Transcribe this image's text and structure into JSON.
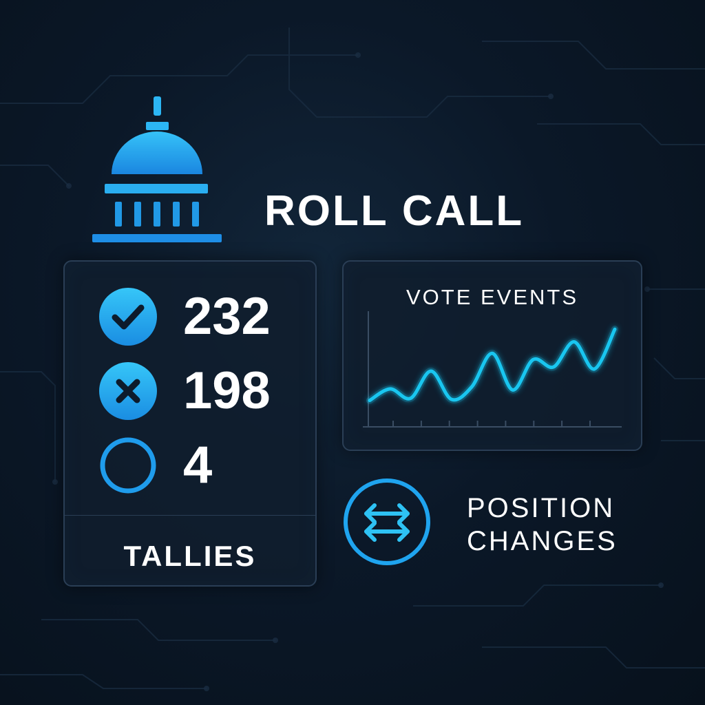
{
  "app": {
    "title": "ROLL CALL",
    "logo_icon": "capitol-dome-icon",
    "accent_color": "#2ab8f5",
    "accent_dark": "#1479d6"
  },
  "tallies": {
    "label": "TALLIES",
    "rows": [
      {
        "icon": "check-circle-icon",
        "value": "232"
      },
      {
        "icon": "x-circle-icon",
        "value": "198"
      },
      {
        "icon": "empty-circle-icon",
        "value": "4"
      }
    ]
  },
  "vote_events": {
    "title": "VOTE EVENTS",
    "chart_data": {
      "type": "line",
      "title": "VOTE EVENTS",
      "xlabel": "",
      "ylabel": "",
      "x": [
        0,
        1,
        2,
        3,
        4,
        5,
        6,
        7,
        8,
        9,
        10,
        11,
        12
      ],
      "values": [
        2,
        3.1,
        2.2,
        4.8,
        2.1,
        3.3,
        6.5,
        3.0,
        5.9,
        5.2,
        7.6,
        5.0,
        8.8
      ],
      "ylim": [
        0,
        10
      ],
      "x_ticks": 8,
      "grid": false,
      "color": "#19c6f0"
    }
  },
  "position_changes": {
    "icon": "swap-arrows-icon",
    "label_lines": [
      "POSITION",
      "CHANGES"
    ]
  }
}
